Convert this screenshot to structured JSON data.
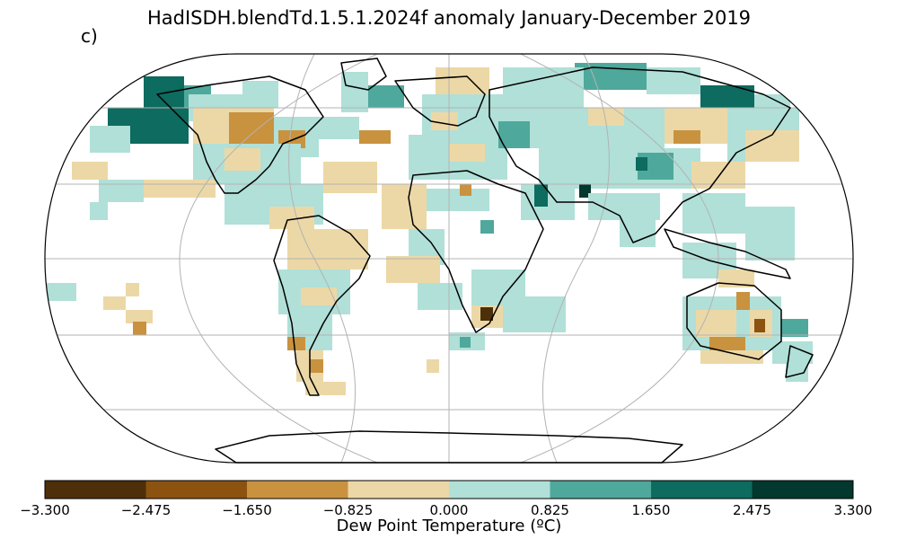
{
  "title": "HadISDH.blendTd.1.5.1.2024f anomaly January-December 2019",
  "panel_label": "c)",
  "colorbar": {
    "label": "Dew Point Temperature (ºC)",
    "ticks": [
      "−3.300",
      "−2.475",
      "−1.650",
      "−0.825",
      "0.000",
      "0.825",
      "1.650",
      "2.475",
      "3.300"
    ],
    "colors": [
      "#4d2f0a",
      "#8c520f",
      "#c9923f",
      "#ecd8a6",
      "#b0e0d8",
      "#4fa89c",
      "#0d6b5f",
      "#02382e"
    ]
  },
  "map": {
    "projection": "Robinson",
    "coastline_color": "#000000",
    "gridline_color": "#b3b3b3",
    "missing_color": "#ffffff"
  }
}
